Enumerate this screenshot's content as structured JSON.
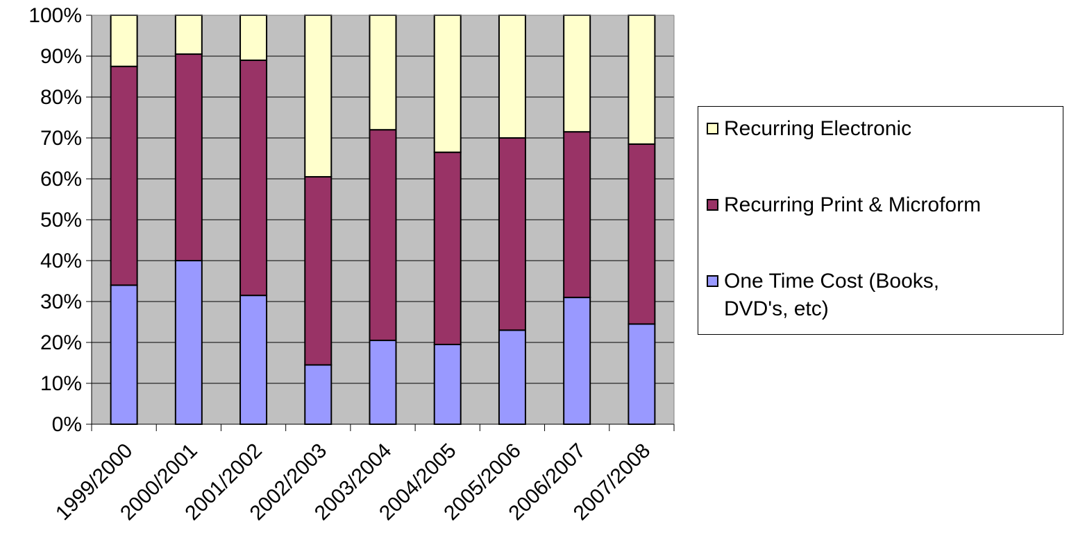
{
  "chart_data": {
    "type": "bar",
    "stacked": true,
    "percent": true,
    "categories": [
      "1999/2000",
      "2000/2001",
      "2001/2002",
      "2002/2003",
      "2003/2004",
      "2004/2005",
      "2005/2006",
      "2006/2007",
      "2007/2008"
    ],
    "series": [
      {
        "name": "One Time Cost (Books, DVD's, etc)",
        "color": "#9999ff",
        "values": [
          34,
          40,
          31.5,
          14.5,
          20.5,
          19.5,
          23,
          31,
          24.5
        ]
      },
      {
        "name": "Recurring Print & Microform",
        "color": "#993366",
        "values": [
          53.5,
          50.5,
          57.5,
          46,
          51.5,
          47,
          47,
          40.5,
          44
        ]
      },
      {
        "name": "Recurring Electronic",
        "color": "#ffffcc",
        "values": [
          12.5,
          9.5,
          11,
          39.5,
          28,
          33.5,
          30,
          28.5,
          31.5
        ]
      }
    ],
    "yticks": [
      "0%",
      "10%",
      "20%",
      "30%",
      "40%",
      "50%",
      "60%",
      "70%",
      "80%",
      "90%",
      "100%"
    ],
    "ylim": [
      0,
      100
    ],
    "grid": true,
    "plot_background": "#c0c0c0",
    "legend_position": "right",
    "legend_order": [
      "Recurring Electronic",
      "Recurring Print & Microform",
      "One Time Cost (Books, DVD's, etc)"
    ],
    "title": "",
    "xlabel": "",
    "ylabel": ""
  },
  "legend": {
    "items": [
      {
        "label": "Recurring Electronic",
        "color": "#ffffcc"
      },
      {
        "label": "Recurring Print & Microform",
        "color": "#993366"
      },
      {
        "label": "One Time Cost (Books,\nDVD's, etc)",
        "color": "#9999ff"
      }
    ]
  }
}
